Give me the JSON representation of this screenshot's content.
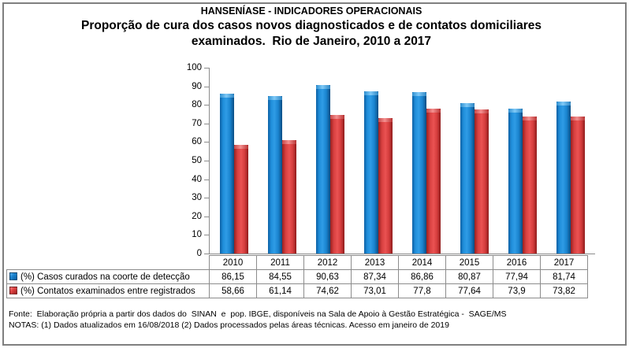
{
  "title": {
    "line1": "HANSENÍASE - INDICADORES OPERACIONAIS",
    "line2": "Proporção de cura dos casos novos diagnosticados e de contatos domiciliares",
    "line3": "examinados.  Rio de Janeiro, 2010 a 2017"
  },
  "chart_data": {
    "type": "bar",
    "categories": [
      "2010",
      "2011",
      "2012",
      "2013",
      "2014",
      "2015",
      "2016",
      "2017"
    ],
    "series": [
      {
        "name": "(%) Casos curados na coorte de detecção",
        "color": "#1B84D0",
        "values": [
          86.15,
          84.55,
          90.63,
          87.34,
          86.86,
          80.87,
          77.94,
          81.74
        ]
      },
      {
        "name": "(%) Contatos examinados entre registrados",
        "color": "#E04343",
        "values": [
          58.66,
          61.14,
          74.62,
          73.01,
          77.8,
          77.64,
          73.9,
          73.82
        ]
      }
    ],
    "title": "Proporção de cura dos casos novos diagnosticados e de contatos domiciliares examinados. Rio de Janeiro, 2010 a 2017",
    "xlabel": "",
    "ylabel": "",
    "ylim": [
      0,
      100
    ],
    "ytick_step": 10,
    "grid": false,
    "legend_position": "bottom-table",
    "decimal_separator": ","
  },
  "footer": {
    "fonte": "Fonte:  Elaboração própria a partir dos dados do  SINAN  e  pop. IBGE, disponíveis na Sala de Apoio à Gestão Estratégica -  SAGE/MS",
    "notas": "NOTAS: (1) Dados atualizados em 16/08/2018 (2) Dados processados pelas áreas técnicas. Acesso em janeiro de 2019"
  }
}
